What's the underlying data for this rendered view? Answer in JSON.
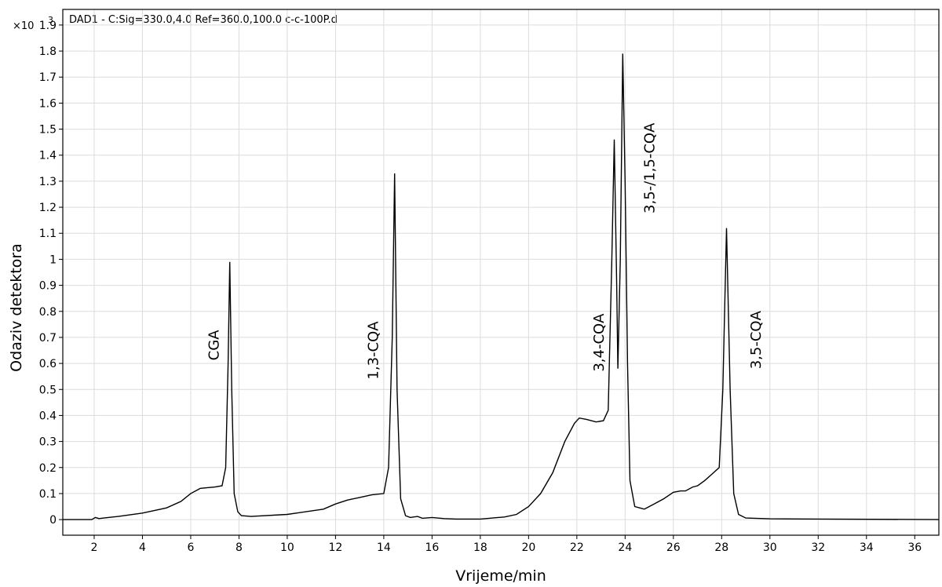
{
  "header": {
    "scale_prefix": "×10",
    "scale_exponent": "3",
    "trace_label": "DAD1 - C:Sig=330.0,4.0  Ref=360.0,100.0 c-c-100P.d"
  },
  "chart_data": {
    "type": "line",
    "title": "",
    "xlabel": "Vrijeme/min",
    "ylabel": "Odaziv detektora",
    "xlim": [
      0.7,
      37.0
    ],
    "ylim": [
      -0.06,
      1.96
    ],
    "grid": true,
    "xticks": [
      2,
      4,
      6,
      8,
      10,
      12,
      14,
      16,
      18,
      20,
      22,
      24,
      26,
      28,
      30,
      32,
      34,
      36
    ],
    "xtick_labels": [
      "2",
      "4",
      "6",
      "8",
      "10",
      "12",
      "14",
      "16",
      "18",
      "20",
      "22",
      "24",
      "26",
      "28",
      "30",
      "32",
      "34",
      "36"
    ],
    "yticks": [
      0,
      0.1,
      0.2,
      0.3,
      0.4,
      0.5,
      0.6,
      0.7,
      0.8,
      0.9,
      1,
      1.1,
      1.2,
      1.3,
      1.4,
      1.5,
      1.6,
      1.7,
      1.8,
      1.9
    ],
    "ytick_labels": [
      "0",
      "0.1",
      "0.2",
      "0.3",
      "0.4",
      "0.5",
      "0.6",
      "0.7",
      "0.8",
      "0.9",
      "1",
      "1.1",
      "1.2",
      "1.3",
      "1.4",
      "1.5",
      "1.6",
      "1.7",
      "1.8",
      "1.9"
    ],
    "series": [
      {
        "x": [
          0.7,
          1.9,
          2.05,
          2.2,
          2.4,
          3.0,
          4.0,
          5.0,
          5.6,
          6.0,
          6.4,
          7.0,
          7.3,
          7.45,
          7.55,
          7.62,
          7.7,
          7.8,
          7.95,
          8.1,
          8.5,
          10.0,
          11.5,
          12.0,
          12.5,
          13.0,
          13.5,
          14.0,
          14.2,
          14.35,
          14.45,
          14.55,
          14.7,
          14.9,
          15.1,
          15.4,
          15.6,
          16.0,
          16.5,
          17.0,
          18.0,
          19.0,
          19.5,
          20.0,
          20.5,
          21.0,
          21.5,
          21.9,
          22.1,
          22.4,
          22.8,
          23.1,
          23.3,
          23.45,
          23.55,
          23.65,
          23.7,
          23.8,
          23.9,
          24.0,
          24.1,
          24.2,
          24.4,
          24.6,
          24.8,
          25.2,
          25.6,
          26.0,
          26.3,
          26.5,
          26.8,
          27.0,
          27.3,
          27.6,
          27.9,
          28.05,
          28.2,
          28.35,
          28.5,
          28.7,
          29.0,
          30.0,
          32.0,
          37.0
        ],
        "y": [
          0.0,
          0.0,
          0.008,
          0.004,
          0.006,
          0.012,
          0.025,
          0.045,
          0.07,
          0.1,
          0.12,
          0.125,
          0.13,
          0.2,
          0.6,
          0.99,
          0.5,
          0.1,
          0.03,
          0.015,
          0.012,
          0.02,
          0.04,
          0.06,
          0.075,
          0.085,
          0.095,
          0.1,
          0.2,
          0.7,
          1.33,
          0.5,
          0.08,
          0.015,
          0.008,
          0.012,
          0.005,
          0.008,
          0.004,
          0.002,
          0.002,
          0.01,
          0.02,
          0.05,
          0.1,
          0.18,
          0.3,
          0.37,
          0.39,
          0.385,
          0.375,
          0.38,
          0.42,
          1.0,
          1.46,
          0.9,
          0.58,
          1.0,
          1.79,
          1.3,
          0.6,
          0.15,
          0.05,
          0.045,
          0.04,
          0.06,
          0.08,
          0.105,
          0.11,
          0.11,
          0.125,
          0.13,
          0.15,
          0.175,
          0.2,
          0.5,
          1.12,
          0.5,
          0.1,
          0.02,
          0.006,
          0.003,
          0.002,
          0.0
        ]
      }
    ],
    "annotations": [
      {
        "text": "CGA",
        "x": 7.0,
        "y": 0.67
      },
      {
        "text": "1,3-CQA",
        "x": 13.6,
        "y": 0.65
      },
      {
        "text": "3,4-CQA",
        "x": 22.95,
        "y": 0.68
      },
      {
        "text": "3,5-/1,5-CQA",
        "x": 25.05,
        "y": 1.35
      },
      {
        "text": "3,5-CQA",
        "x": 29.45,
        "y": 0.69
      }
    ]
  }
}
